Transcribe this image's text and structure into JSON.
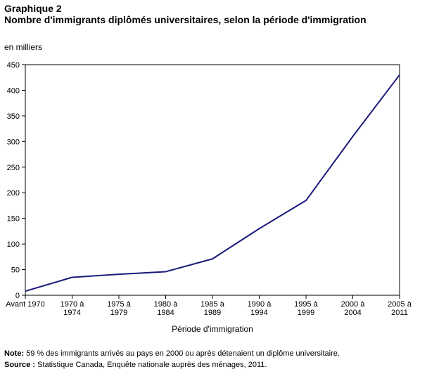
{
  "chart_data": {
    "type": "line",
    "title_line1": "Graphique 2",
    "title_line2": "Nombre d'immigrants diplômés universitaires, selon la période d'immigration",
    "unit_label": "en milliers",
    "xlabel": "Période d'immigration",
    "ylabel": "en milliers",
    "ylim": [
      0,
      450
    ],
    "yticks": [
      0,
      50,
      100,
      150,
      200,
      250,
      300,
      350,
      400,
      450
    ],
    "categories": [
      [
        "Avant 1970"
      ],
      [
        "1970 à",
        "1974"
      ],
      [
        "1975 à",
        "1979"
      ],
      [
        "1980 à",
        "1984"
      ],
      [
        "1985 à",
        "1989"
      ],
      [
        "1990 à",
        "1994"
      ],
      [
        "1995 à",
        "1999"
      ],
      [
        "2000 à",
        "2004"
      ],
      [
        "2005 à",
        "2011"
      ]
    ],
    "series": [
      {
        "name": "Immigrants diplômés universitaires",
        "values": [
          8,
          35,
          41,
          46,
          71,
          130,
          185,
          310,
          430
        ]
      }
    ],
    "line_color": "#1a1a7a",
    "grid": false
  },
  "notes": {
    "note_label": "Note:",
    "note_text": " 59 % des immigrants arrivés au pays en 2000 ou après détenaient un diplôme universitaire.",
    "source_label": "Source :",
    "source_text": " Statistique Canada, Enquête nationale auprès des ménages, 2011."
  }
}
